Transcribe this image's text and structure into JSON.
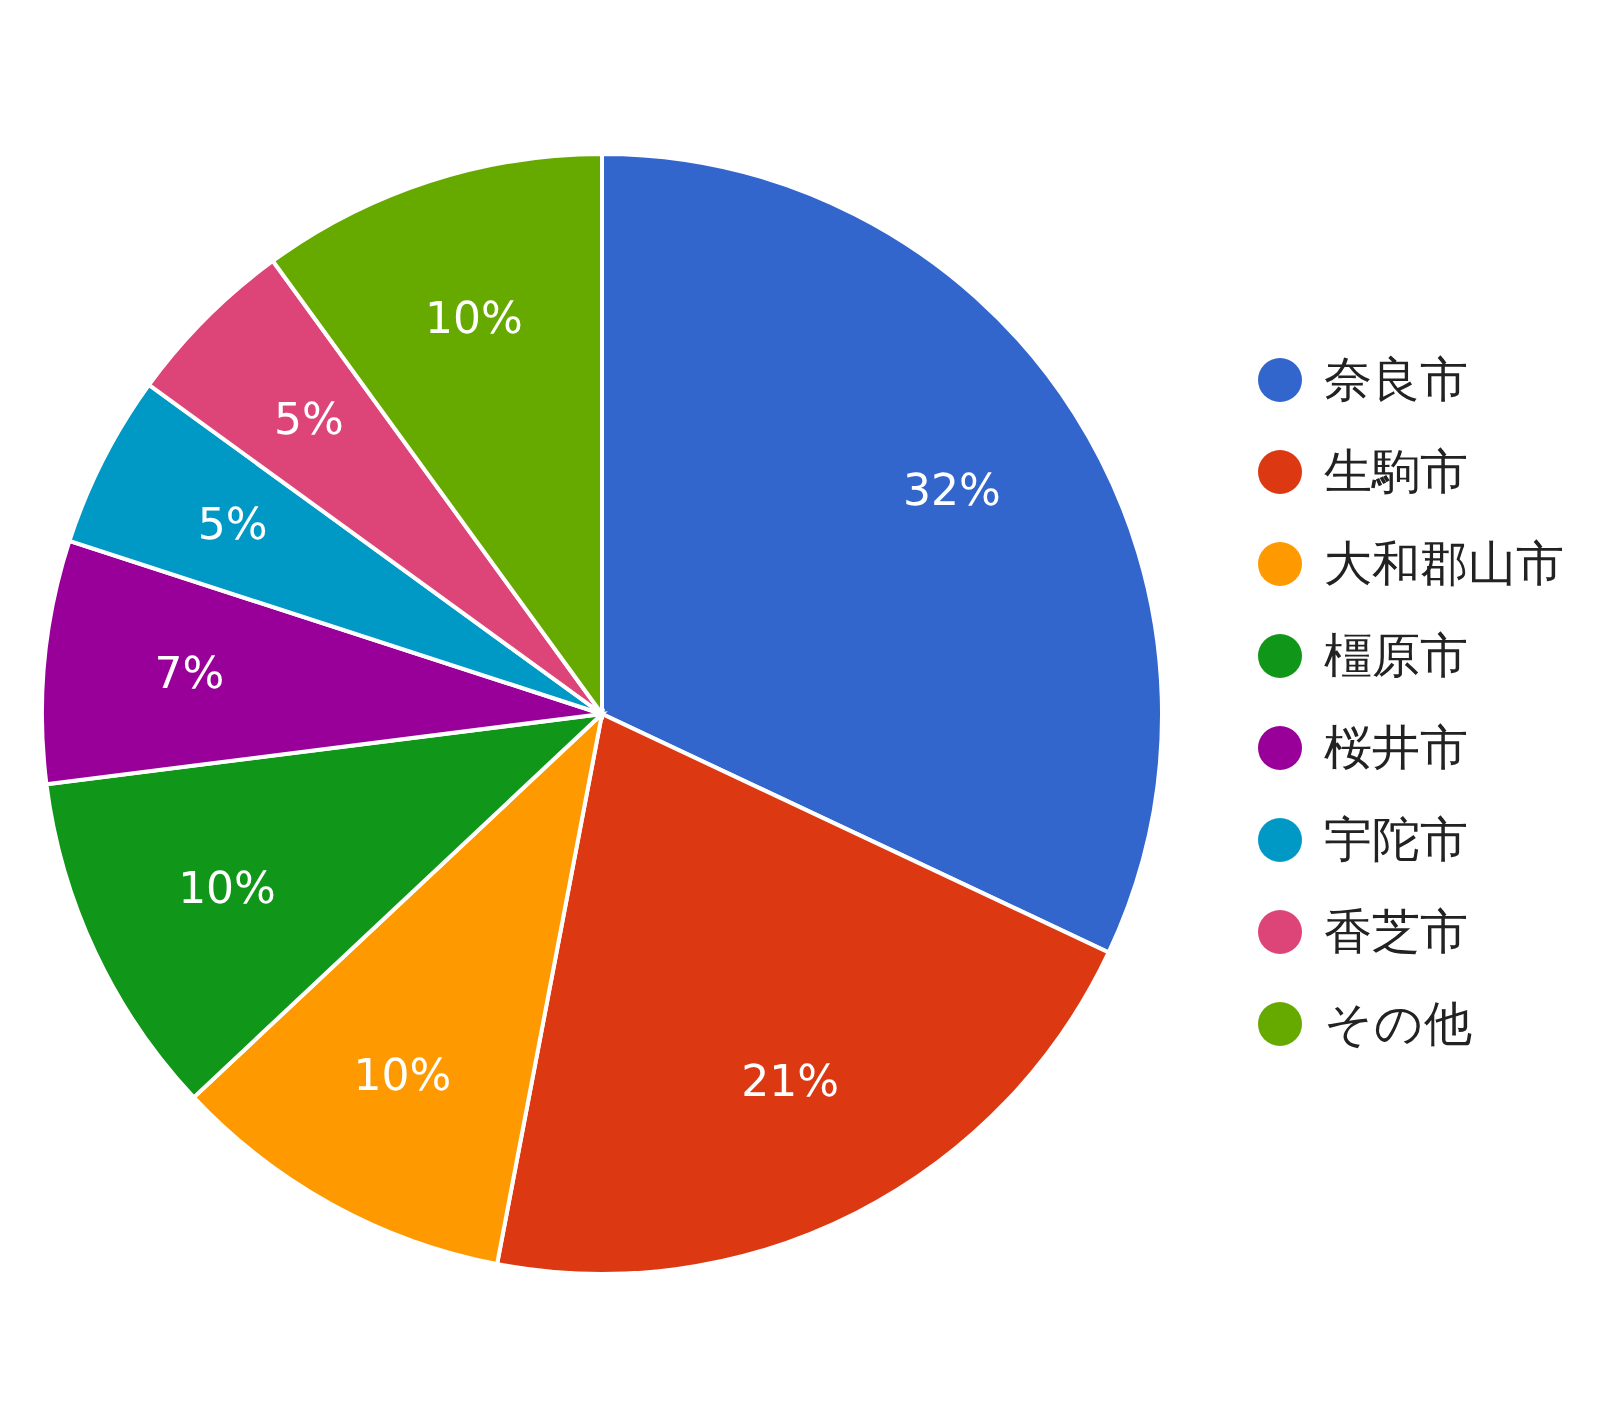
{
  "chart_data": {
    "type": "pie",
    "categories": [
      "奈良市",
      "生駒市",
      "大和郡山市",
      "橿原市",
      "桜井市",
      "宇陀市",
      "香芝市",
      "その他"
    ],
    "values": [
      32,
      21,
      10,
      10,
      7,
      5,
      5,
      10
    ],
    "value_labels": [
      "32%",
      "21%",
      "10%",
      "10%",
      "7%",
      "5%",
      "5%",
      "10%"
    ],
    "colors": [
      "#3366cc",
      "#dc3912",
      "#ff9900",
      "#109618",
      "#990099",
      "#0099c6",
      "#dd4477",
      "#66aa00"
    ],
    "legend": "right"
  }
}
